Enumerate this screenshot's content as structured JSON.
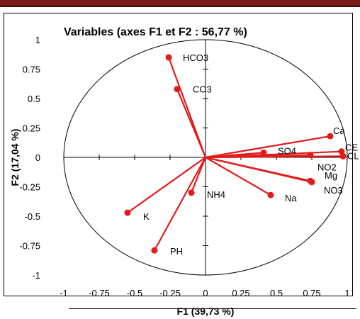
{
  "colors": {
    "accent": "#e31a1c",
    "header_bar": "#7a1c14",
    "axis": "#000000",
    "text": "#000000"
  },
  "chart_data": {
    "type": "scatter",
    "title": "Variables (axes F1 et F2 : 56,77 %)",
    "xlabel": "F1 (39,73 %)",
    "ylabel": "F2 (17,04 %)",
    "xlim": [
      -1,
      1
    ],
    "ylim": [
      -1,
      1
    ],
    "x_ticks": [
      "-1",
      "-0.75",
      "-0.5",
      "-0.25",
      "0",
      "0.25",
      "0.5",
      "0.75",
      "1"
    ],
    "y_ticks": [
      "1",
      "0.75",
      "0.5",
      "0.25",
      "0",
      "-0.25",
      "-0.5",
      "-0.75",
      "-1"
    ],
    "unit_circle": true,
    "grid": false,
    "series": [
      {
        "points": [
          {
            "label": "HCO3",
            "x": -0.26,
            "y": 0.85
          },
          {
            "label": "CO3",
            "x": -0.2,
            "y": 0.58
          },
          {
            "label": "Ca",
            "x": 0.88,
            "y": 0.18
          },
          {
            "label": "CE",
            "x": 0.96,
            "y": 0.05
          },
          {
            "label": "CL",
            "x": 0.97,
            "y": 0.01
          },
          {
            "label": "SO4",
            "x": 0.41,
            "y": 0.04
          },
          {
            "label": "NO2",
            "x": 0.74,
            "y": 0.02
          },
          {
            "label": "Mg",
            "x": 0.74,
            "y": -0.2
          },
          {
            "label": "NO3",
            "x": 0.75,
            "y": -0.21
          },
          {
            "label": "NH4",
            "x": -0.1,
            "y": -0.3
          },
          {
            "label": "Na",
            "x": 0.46,
            "y": -0.32
          },
          {
            "label": "K",
            "x": -0.55,
            "y": -0.47
          },
          {
            "label": "PH",
            "x": -0.36,
            "y": -0.79
          }
        ]
      }
    ]
  }
}
